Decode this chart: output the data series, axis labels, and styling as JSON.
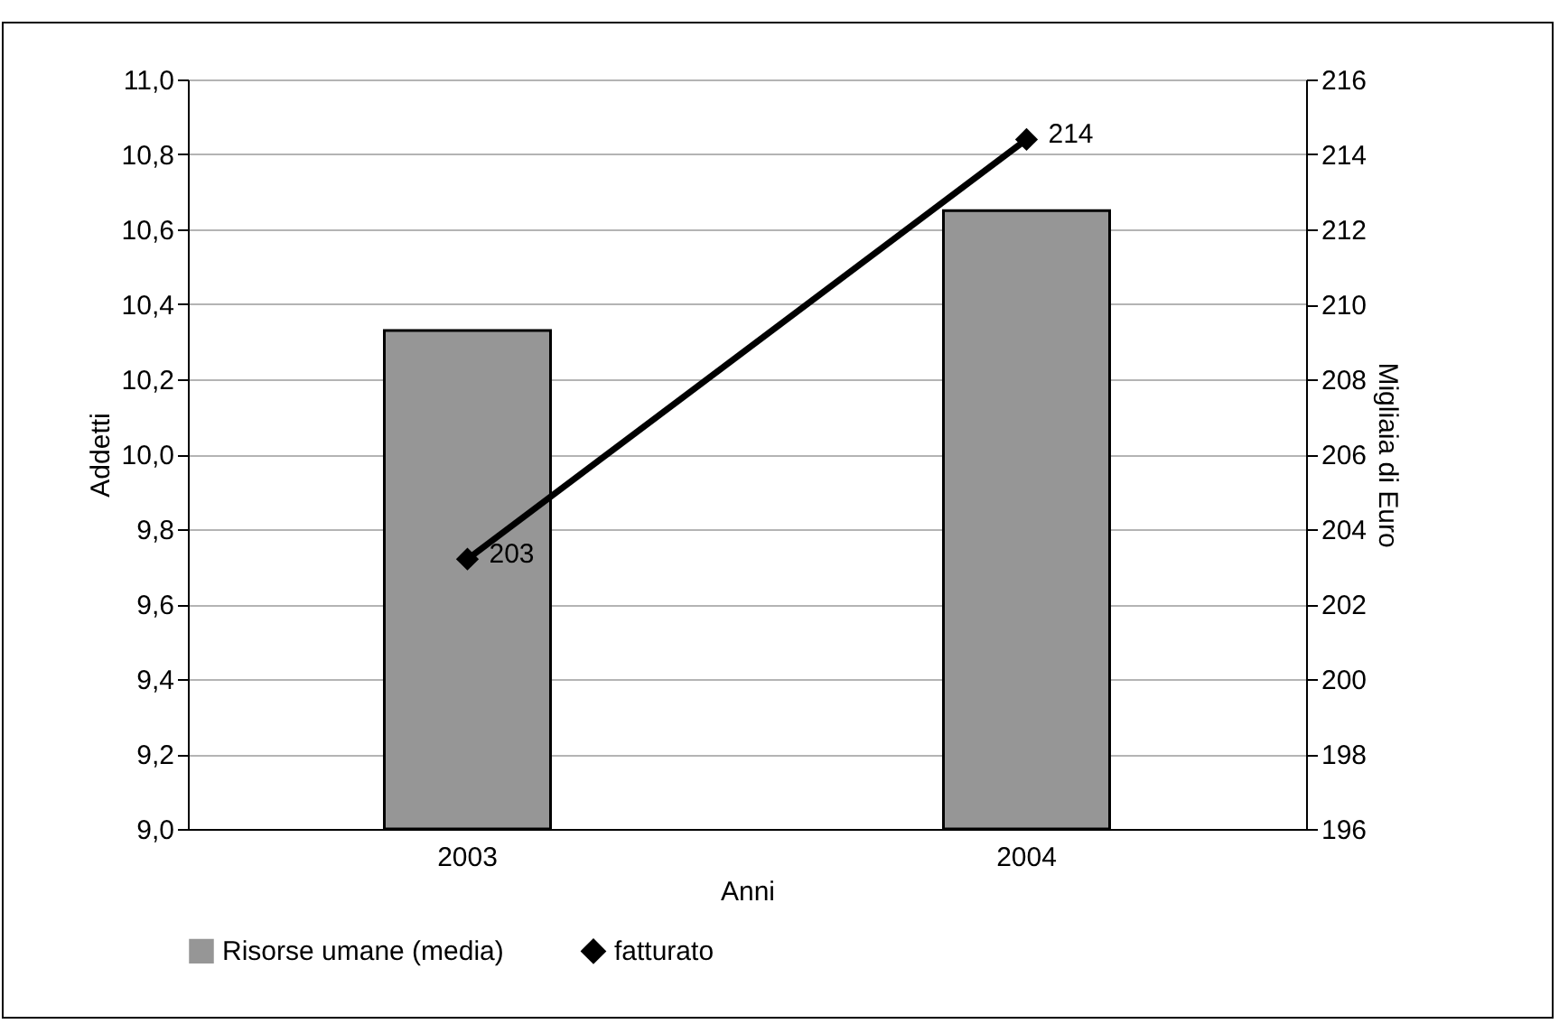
{
  "chart_data": {
    "type": "bar",
    "xlabel": "Anni",
    "ylabel": "Addetti",
    "y2label": "Migliaia di Euro",
    "categories": [
      "2003",
      "2004"
    ],
    "series": [
      {
        "name": "Risorse umane (media)",
        "color": "#969696",
        "values": [
          10.33,
          10.65
        ]
      },
      {
        "name": "fatturato",
        "type": "line",
        "axis": "y2",
        "color": "#000000",
        "marker": "diamond",
        "line_style": "solid",
        "values": [
          203.2,
          214.4
        ],
        "value_labels": [
          "203",
          "214"
        ]
      }
    ],
    "ylim": [
      9,
      11
    ],
    "yticks": [
      {
        "value": 9,
        "label": "9,0"
      },
      {
        "value": 9.2,
        "label": "9,2"
      },
      {
        "value": 9.4,
        "label": "9,4"
      },
      {
        "value": 9.6,
        "label": "9,6"
      },
      {
        "value": 9.8,
        "label": "9,8"
      },
      {
        "value": 10,
        "label": "10,0"
      },
      {
        "value": 10.2,
        "label": "10,2"
      },
      {
        "value": 10.4,
        "label": "10,4"
      },
      {
        "value": 10.6,
        "label": "10,6"
      },
      {
        "value": 10.8,
        "label": "10,8"
      },
      {
        "value": 11,
        "label": "11,0"
      }
    ],
    "y2lim": [
      196,
      216
    ],
    "y2ticks": [
      196,
      198,
      200,
      202,
      204,
      206,
      208,
      210,
      212,
      214,
      216
    ],
    "grid": "y",
    "legend": "bottom"
  }
}
